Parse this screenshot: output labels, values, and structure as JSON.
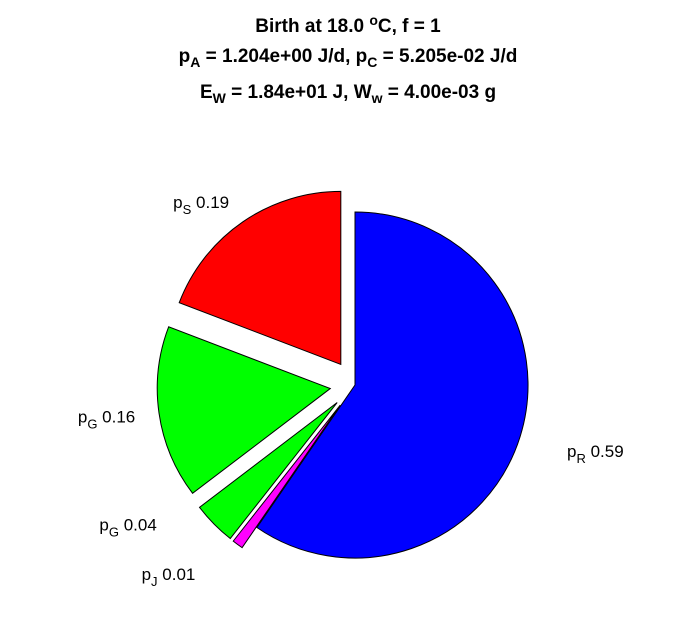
{
  "title": {
    "line1": {
      "prefix": "Birth at 18.0 ",
      "sup": "o",
      "suffix": "C, f = 1"
    },
    "line2": [
      {
        "base": "p",
        "sub": "A",
        "rest": " = 1.204e+00 J/d, "
      },
      {
        "base": "p",
        "sub": "C",
        "rest": " = 5.205e-02 J/d"
      }
    ],
    "line3": [
      {
        "base": "E",
        "sub": "W",
        "rest": " = 1.84e+01 J, "
      },
      {
        "base": "W",
        "sub": "w",
        "rest": " = 4.00e-03 g"
      }
    ]
  },
  "chart_data": {
    "type": "pie",
    "slices": [
      {
        "base": "p",
        "sub": "R",
        "value": 0.59,
        "label": "0.59",
        "color": "#0000ff",
        "exploded": false
      },
      {
        "base": "p",
        "sub": "J",
        "value": 0.01,
        "label": "0.01",
        "color": "#ff00ff",
        "exploded": true
      },
      {
        "base": "p",
        "sub": "G",
        "value": 0.04,
        "label": "0.04",
        "color": "#00ff00",
        "exploded": true
      },
      {
        "base": "p",
        "sub": "G",
        "value": 0.16,
        "label": "0.16",
        "color": "#00ff00",
        "exploded": true
      },
      {
        "base": "p",
        "sub": "S",
        "value": 0.19,
        "label": "0.19",
        "color": "#ff0000",
        "exploded": true
      }
    ]
  }
}
